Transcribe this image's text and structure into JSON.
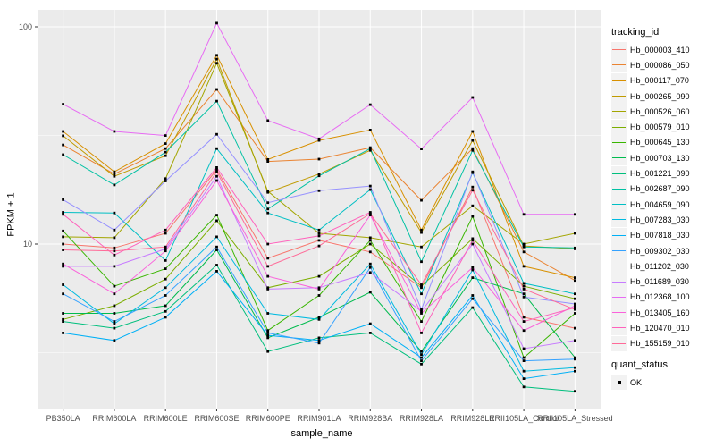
{
  "chart_data": {
    "type": "line",
    "title": "",
    "xlabel": "sample_name",
    "ylabel": "FPKM + 1",
    "y_scale": "log10",
    "ylim": [
      1.75,
      120
    ],
    "y_major_ticks": [
      100,
      10
    ],
    "y_major_tick_labels": [
      "100",
      "10"
    ],
    "y_minor_gridlines": [
      31.623,
      3.1623
    ],
    "grid": "on",
    "panel_bg": "#EBEBEB",
    "grid_color": "#FFFFFF",
    "tick_color": "#333333",
    "tick_label_color": "#4D4D4D",
    "point_color": "#000000",
    "legend_position": "right",
    "categories": [
      "PB350LA",
      "RRIM600LA",
      "RRIM600LE",
      "RRIM600SE",
      "RRIM600PE",
      "RRIM901LA",
      "RRIM928BA",
      "RRIM928LA",
      "RRIM928LE",
      "RRII105LA_Control",
      "RRII105LA_Stressed"
    ],
    "legend_title": "tracking_id",
    "quant_legend_title": "quant_status",
    "quant_status_label": "OK",
    "series": [
      {
        "name": "Hb_000003_410",
        "color": "#F8766D",
        "values": [
          10.0,
          9.6,
          11.2,
          22.0,
          8.6,
          10.4,
          9.2,
          6.3,
          18.3,
          4.6,
          4.1
        ]
      },
      {
        "name": "Hb_000086_050",
        "color": "#EA8331",
        "values": [
          28.6,
          21.0,
          27.5,
          51.5,
          24.0,
          24.6,
          27.8,
          15.9,
          27.5,
          9.2,
          6.8
        ]
      },
      {
        "name": "Hb_000117_070",
        "color": "#D89000",
        "values": [
          33.0,
          21.5,
          29.0,
          74.0,
          24.5,
          30.0,
          33.5,
          11.6,
          33.0,
          7.9,
          7.0
        ]
      },
      {
        "name": "Hb_000265_090",
        "color": "#C09B00",
        "values": [
          31.5,
          20.5,
          25.5,
          71.0,
          17.3,
          21.0,
          27.0,
          11.3,
          30.0,
          9.8,
          9.5
        ]
      },
      {
        "name": "Hb_000526_060",
        "color": "#A3A500",
        "values": [
          10.8,
          10.7,
          20.0,
          68.0,
          17.5,
          11.2,
          10.7,
          9.7,
          15.0,
          10.0,
          11.2
        ]
      },
      {
        "name": "Hb_000579_010",
        "color": "#7CAE00",
        "values": [
          4.5,
          5.2,
          6.9,
          12.8,
          6.3,
          7.1,
          10.0,
          6.4,
          10.6,
          6.4,
          5.6
        ]
      },
      {
        "name": "Hb_000645_130",
        "color": "#39B600",
        "values": [
          11.5,
          6.4,
          7.7,
          13.6,
          4.0,
          5.8,
          10.4,
          4.4,
          13.4,
          3.0,
          4.8
        ]
      },
      {
        "name": "Hb_000703_130",
        "color": "#00BB4E",
        "values": [
          4.8,
          4.8,
          5.2,
          9.4,
          3.7,
          4.6,
          6.0,
          3.2,
          7.0,
          5.9,
          3.0
        ]
      },
      {
        "name": "Hb_001221_090",
        "color": "#00BF7D",
        "values": [
          4.4,
          4.1,
          4.9,
          8.0,
          3.2,
          3.7,
          3.9,
          2.8,
          5.1,
          2.2,
          2.1
        ]
      },
      {
        "name": "Hb_002687_090",
        "color": "#00C1A3",
        "values": [
          25.8,
          18.7,
          26.5,
          45.5,
          14.5,
          20.6,
          27.5,
          8.3,
          27.0,
          9.7,
          9.6
        ]
      },
      {
        "name": "Hb_004659_090",
        "color": "#00BFC4",
        "values": [
          14.0,
          13.9,
          8.4,
          27.5,
          13.9,
          11.6,
          17.8,
          5.9,
          21.3,
          6.6,
          5.9
        ]
      },
      {
        "name": "Hb_007283_030",
        "color": "#00BAE0",
        "values": [
          6.5,
          4.3,
          6.3,
          10.8,
          4.8,
          4.5,
          8.1,
          3.1,
          7.6,
          2.6,
          2.7
        ]
      },
      {
        "name": "Hb_007818_030",
        "color": "#00B0F6",
        "values": [
          3.9,
          3.6,
          4.6,
          7.5,
          3.8,
          3.6,
          4.3,
          3.0,
          5.8,
          2.4,
          2.6
        ]
      },
      {
        "name": "Hb_009302_030",
        "color": "#35A2FF",
        "values": [
          5.9,
          4.4,
          5.8,
          9.7,
          3.9,
          3.5,
          7.8,
          2.9,
          5.6,
          2.9,
          2.95
        ]
      },
      {
        "name": "Hb_011202_030",
        "color": "#9590FF",
        "values": [
          16.0,
          11.6,
          19.5,
          32.0,
          15.5,
          17.6,
          18.5,
          5.0,
          21.5,
          5.7,
          5.3
        ]
      },
      {
        "name": "Hb_011689_030",
        "color": "#C77CFF",
        "values": [
          7.9,
          7.9,
          9.5,
          20.5,
          6.2,
          6.3,
          7.4,
          4.9,
          10.0,
          3.3,
          3.6
        ]
      },
      {
        "name": "Hb_012368_100",
        "color": "#E76BF3",
        "values": [
          44.0,
          33.0,
          31.6,
          104.0,
          37.0,
          30.5,
          43.8,
          27.4,
          47.3,
          13.7,
          13.7
        ]
      },
      {
        "name": "Hb_013405_160",
        "color": "#FA62DB",
        "values": [
          8.1,
          5.9,
          9.3,
          19.6,
          7.1,
          6.2,
          13.6,
          4.8,
          7.8,
          4.0,
          5.2
        ]
      },
      {
        "name": "Hb_120470_010",
        "color": "#FF62BC",
        "values": [
          13.7,
          8.9,
          11.6,
          22.5,
          10.0,
          10.9,
          14.0,
          3.9,
          10.4,
          4.4,
          5.1
        ]
      },
      {
        "name": "Hb_155159_010",
        "color": "#FF6A98",
        "values": [
          9.4,
          9.3,
          9.7,
          21.5,
          7.9,
          9.8,
          13.8,
          6.5,
          17.7,
          6.2,
          5.0
        ]
      }
    ]
  }
}
